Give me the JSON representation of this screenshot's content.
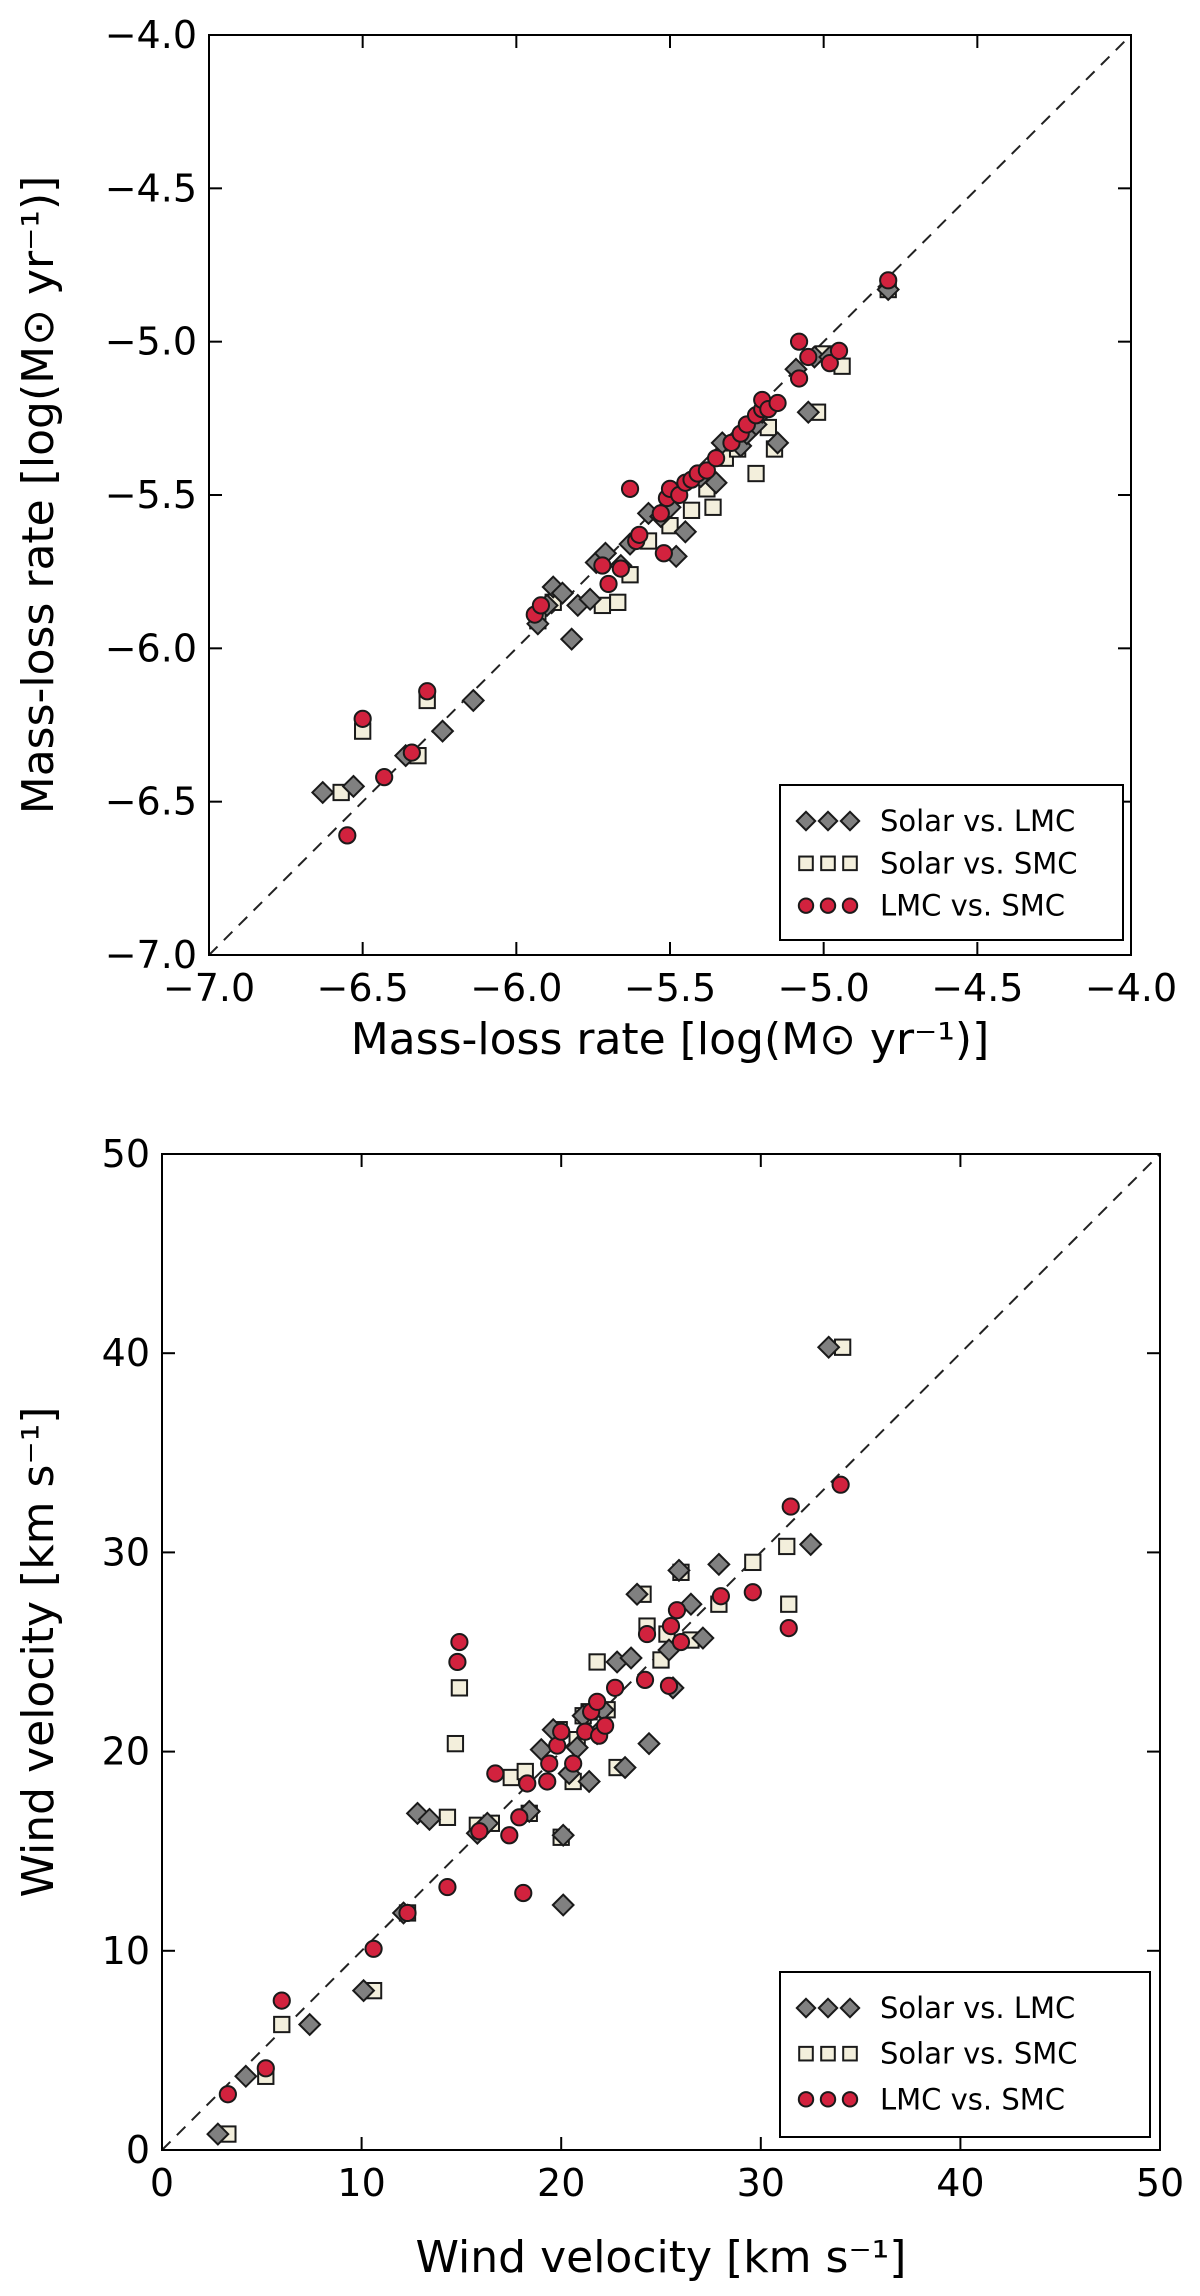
{
  "chart_data": [
    {
      "type": "scatter",
      "panel": "top",
      "xlabel": "Mass-loss rate [log(M⊙ yr⁻¹)]",
      "ylabel": "Mass-loss rate [log(M⊙ yr⁻¹)]",
      "xlim": [
        -7.0,
        -4.0
      ],
      "ylim": [
        -7.0,
        -4.0
      ],
      "xticks": [
        "−7.0",
        "−6.5",
        "−6.0",
        "−5.5",
        "−5.0",
        "−4.5",
        "−4.0"
      ],
      "yticks": [
        "−7.0",
        "−6.5",
        "−6.0",
        "−5.5",
        "−5.0",
        "−4.5",
        "−4.0"
      ],
      "xtick_values": [
        -7.0,
        -6.5,
        -6.0,
        -5.5,
        -5.0,
        -4.5,
        -4.0
      ],
      "ytick_values": [
        -7.0,
        -6.5,
        -6.0,
        -5.5,
        -5.0,
        -4.5,
        -4.0
      ],
      "legend_position": "lower-right",
      "reference_line": "y = x (dashed)",
      "series": [
        {
          "name": "Solar vs. LMC",
          "marker": "diamond",
          "color": "#808080",
          "points": [
            [
              -6.63,
              -6.47
            ],
            [
              -6.53,
              -6.45
            ],
            [
              -6.36,
              -6.35
            ],
            [
              -6.24,
              -6.27
            ],
            [
              -6.14,
              -6.17
            ],
            [
              -5.93,
              -5.92
            ],
            [
              -5.9,
              -5.86
            ],
            [
              -5.88,
              -5.8
            ],
            [
              -5.85,
              -5.82
            ],
            [
              -5.82,
              -5.97
            ],
            [
              -5.8,
              -5.86
            ],
            [
              -5.76,
              -5.84
            ],
            [
              -5.74,
              -5.72
            ],
            [
              -5.71,
              -5.69
            ],
            [
              -5.66,
              -5.73
            ],
            [
              -5.63,
              -5.66
            ],
            [
              -5.57,
              -5.56
            ],
            [
              -5.53,
              -5.57
            ],
            [
              -5.5,
              -5.54
            ],
            [
              -5.48,
              -5.7
            ],
            [
              -5.45,
              -5.62
            ],
            [
              -5.4,
              -5.44
            ],
            [
              -5.35,
              -5.46
            ],
            [
              -5.33,
              -5.33
            ],
            [
              -5.27,
              -5.34
            ],
            [
              -5.25,
              -5.3
            ],
            [
              -5.22,
              -5.27
            ],
            [
              -5.2,
              -5.23
            ],
            [
              -5.15,
              -5.33
            ],
            [
              -5.09,
              -5.09
            ],
            [
              -5.05,
              -5.23
            ],
            [
              -5.03,
              -5.05
            ],
            [
              -4.98,
              -5.05
            ],
            [
              -4.79,
              -4.83
            ]
          ]
        },
        {
          "name": "Solar vs. SMC",
          "marker": "square",
          "color": "#f3efdc",
          "points": [
            [
              -6.57,
              -6.47
            ],
            [
              -6.5,
              -6.27
            ],
            [
              -6.32,
              -6.35
            ],
            [
              -6.29,
              -6.17
            ],
            [
              -5.93,
              -5.91
            ],
            [
              -5.88,
              -5.85
            ],
            [
              -5.72,
              -5.86
            ],
            [
              -5.67,
              -5.85
            ],
            [
              -5.63,
              -5.76
            ],
            [
              -5.57,
              -5.65
            ],
            [
              -5.5,
              -5.6
            ],
            [
              -5.43,
              -5.55
            ],
            [
              -5.38,
              -5.48
            ],
            [
              -5.36,
              -5.54
            ],
            [
              -5.32,
              -5.38
            ],
            [
              -5.28,
              -5.35
            ],
            [
              -5.22,
              -5.43
            ],
            [
              -5.18,
              -5.28
            ],
            [
              -5.16,
              -5.35
            ],
            [
              -5.02,
              -5.23
            ],
            [
              -5.0,
              -5.04
            ],
            [
              -4.94,
              -5.08
            ],
            [
              -4.79,
              -4.83
            ]
          ]
        },
        {
          "name": "LMC vs. SMC",
          "marker": "circle",
          "color": "#d2223e",
          "points": [
            [
              -6.55,
              -6.61
            ],
            [
              -6.5,
              -6.23
            ],
            [
              -6.43,
              -6.42
            ],
            [
              -6.34,
              -6.34
            ],
            [
              -6.29,
              -6.14
            ],
            [
              -5.94,
              -5.89
            ],
            [
              -5.92,
              -5.86
            ],
            [
              -5.72,
              -5.73
            ],
            [
              -5.7,
              -5.79
            ],
            [
              -5.66,
              -5.74
            ],
            [
              -5.63,
              -5.48
            ],
            [
              -5.61,
              -5.65
            ],
            [
              -5.6,
              -5.63
            ],
            [
              -5.53,
              -5.56
            ],
            [
              -5.52,
              -5.69
            ],
            [
              -5.51,
              -5.51
            ],
            [
              -5.5,
              -5.48
            ],
            [
              -5.47,
              -5.5
            ],
            [
              -5.45,
              -5.46
            ],
            [
              -5.43,
              -5.45
            ],
            [
              -5.41,
              -5.43
            ],
            [
              -5.38,
              -5.42
            ],
            [
              -5.35,
              -5.38
            ],
            [
              -5.3,
              -5.33
            ],
            [
              -5.27,
              -5.3
            ],
            [
              -5.25,
              -5.27
            ],
            [
              -5.22,
              -5.24
            ],
            [
              -5.2,
              -5.22
            ],
            [
              -5.2,
              -5.19
            ],
            [
              -5.18,
              -5.22
            ],
            [
              -5.15,
              -5.2
            ],
            [
              -5.08,
              -5.12
            ],
            [
              -5.08,
              -5.0
            ],
            [
              -5.05,
              -5.05
            ],
            [
              -4.98,
              -5.07
            ],
            [
              -4.95,
              -5.03
            ],
            [
              -4.79,
              -4.8
            ]
          ]
        }
      ]
    },
    {
      "type": "scatter",
      "panel": "bottom",
      "xlabel": "Wind velocity [km s⁻¹]",
      "ylabel": "Wind velocity [km s⁻¹]",
      "xlim": [
        0,
        50
      ],
      "ylim": [
        0,
        50
      ],
      "xticks": [
        "0",
        "10",
        "20",
        "30",
        "40",
        "50"
      ],
      "yticks": [
        "0",
        "10",
        "20",
        "30",
        "40",
        "50"
      ],
      "xtick_values": [
        0,
        10,
        20,
        30,
        40,
        50
      ],
      "ytick_values": [
        0,
        10,
        20,
        30,
        40,
        50
      ],
      "legend_position": "lower-right",
      "reference_line": "y = x (dashed)",
      "series": [
        {
          "name": "Solar vs. LMC",
          "marker": "diamond",
          "color": "#808080",
          "points": [
            [
              2.8,
              0.8
            ],
            [
              4.2,
              3.7
            ],
            [
              7.4,
              6.3
            ],
            [
              10.1,
              8.0
            ],
            [
              12.1,
              11.9
            ],
            [
              12.8,
              16.9
            ],
            [
              13.4,
              16.6
            ],
            [
              15.8,
              15.9
            ],
            [
              16.0,
              16.1
            ],
            [
              16.3,
              16.4
            ],
            [
              18.4,
              17.0
            ],
            [
              19.0,
              20.1
            ],
            [
              19.6,
              21.1
            ],
            [
              20.1,
              15.8
            ],
            [
              20.1,
              12.3
            ],
            [
              20.4,
              18.9
            ],
            [
              20.8,
              20.2
            ],
            [
              21.1,
              21.8
            ],
            [
              21.4,
              18.5
            ],
            [
              21.8,
              20.9
            ],
            [
              22.1,
              22.1
            ],
            [
              22.8,
              24.5
            ],
            [
              23.2,
              19.2
            ],
            [
              23.5,
              24.7
            ],
            [
              23.8,
              27.9
            ],
            [
              24.4,
              20.4
            ],
            [
              25.4,
              25.1
            ],
            [
              25.6,
              23.2
            ],
            [
              25.9,
              29.1
            ],
            [
              26.5,
              27.4
            ],
            [
              27.1,
              25.7
            ],
            [
              27.9,
              29.4
            ],
            [
              32.5,
              30.4
            ],
            [
              33.4,
              40.3
            ]
          ]
        },
        {
          "name": "Solar vs. SMC",
          "marker": "square",
          "color": "#f3efdc",
          "points": [
            [
              3.3,
              0.8
            ],
            [
              5.2,
              3.7
            ],
            [
              6.0,
              6.3
            ],
            [
              10.6,
              8.0
            ],
            [
              12.3,
              11.9
            ],
            [
              14.3,
              16.7
            ],
            [
              14.7,
              20.4
            ],
            [
              14.9,
              23.2
            ],
            [
              15.8,
              16.3
            ],
            [
              16.5,
              16.4
            ],
            [
              17.5,
              18.7
            ],
            [
              18.2,
              19.0
            ],
            [
              18.4,
              16.9
            ],
            [
              19.9,
              21.1
            ],
            [
              20.0,
              15.7
            ],
            [
              20.6,
              18.5
            ],
            [
              20.8,
              20.6
            ],
            [
              21.1,
              21.8
            ],
            [
              21.4,
              22.0
            ],
            [
              21.8,
              24.5
            ],
            [
              22.3,
              22.1
            ],
            [
              22.8,
              19.2
            ],
            [
              24.1,
              27.9
            ],
            [
              24.3,
              26.3
            ],
            [
              25.0,
              24.6
            ],
            [
              25.3,
              25.9
            ],
            [
              26.0,
              29.0
            ],
            [
              26.5,
              25.6
            ],
            [
              27.9,
              27.4
            ],
            [
              29.6,
              29.5
            ],
            [
              31.3,
              30.3
            ],
            [
              31.4,
              27.4
            ],
            [
              34.1,
              40.3
            ]
          ]
        },
        {
          "name": "LMC vs. SMC",
          "marker": "circle",
          "color": "#d2223e",
          "points": [
            [
              3.3,
              2.8
            ],
            [
              5.2,
              4.1
            ],
            [
              6.0,
              7.5
            ],
            [
              10.6,
              10.1
            ],
            [
              12.3,
              11.9
            ],
            [
              14.3,
              13.2
            ],
            [
              14.8,
              24.5
            ],
            [
              14.9,
              25.5
            ],
            [
              15.9,
              16.0
            ],
            [
              16.7,
              18.9
            ],
            [
              17.4,
              15.8
            ],
            [
              17.9,
              16.7
            ],
            [
              18.1,
              12.9
            ],
            [
              18.3,
              18.4
            ],
            [
              19.3,
              18.5
            ],
            [
              19.4,
              19.4
            ],
            [
              19.8,
              20.3
            ],
            [
              20.0,
              21.0
            ],
            [
              20.6,
              19.4
            ],
            [
              21.2,
              21.0
            ],
            [
              21.5,
              22.0
            ],
            [
              21.8,
              22.5
            ],
            [
              21.9,
              20.8
            ],
            [
              22.2,
              21.3
            ],
            [
              22.7,
              23.2
            ],
            [
              24.2,
              23.6
            ],
            [
              24.3,
              25.9
            ],
            [
              25.4,
              23.3
            ],
            [
              25.5,
              26.3
            ],
            [
              25.8,
              27.1
            ],
            [
              26.0,
              25.5
            ],
            [
              28.0,
              27.8
            ],
            [
              29.6,
              28.0
            ],
            [
              31.4,
              26.2
            ],
            [
              31.5,
              32.3
            ],
            [
              34.0,
              33.4
            ]
          ]
        }
      ]
    }
  ]
}
